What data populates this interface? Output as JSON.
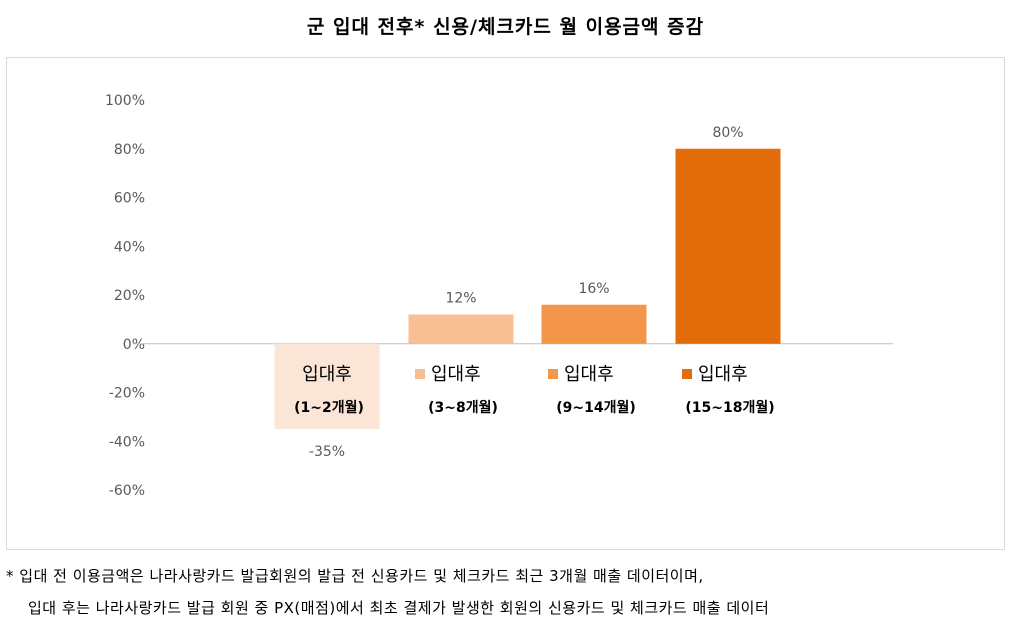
{
  "title": "군 입대 전후* 신용/체크카드 월 이용금액 증감",
  "chart_data": {
    "type": "bar",
    "categories": [
      {
        "line1": "입대후",
        "line2": "(1~2개월)"
      },
      {
        "line1": "입대후",
        "line2": "(3~8개월)"
      },
      {
        "line1": "입대후",
        "line2": "(9~14개월)"
      },
      {
        "line1": "입대후",
        "line2": "(15~18개월)"
      }
    ],
    "values": [
      -35,
      12,
      16,
      80
    ],
    "data_labels": [
      "-35%",
      "12%",
      "16%",
      "80%"
    ],
    "colors": [
      "#FBE5D6",
      "#F8BF94",
      "#F4964A",
      "#E36C0A"
    ],
    "y_ticks": [
      "100%",
      "80%",
      "60%",
      "40%",
      "20%",
      "0%",
      "-20%",
      "-40%",
      "-60%"
    ],
    "ylim": [
      -60,
      100
    ],
    "grid": false,
    "legend": "category labels drawn inside plot area with color markers"
  },
  "notes": {
    "line1": "* 입대 전 이용금액은 나라사랑카드 발급회원의 발급 전 신용카드 및 체크카드 최근 3개월 매출 데이터이며,",
    "line2": "입대 후는 나라사랑카드 발급 회원 중 PX(매점)에서 최초 결제가 발생한 회원의 신용카드 및 체크카드 매출 데이터"
  }
}
